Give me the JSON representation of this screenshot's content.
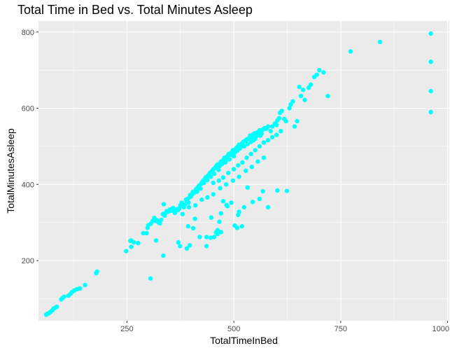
{
  "chart_data": {
    "type": "scatter",
    "title": "Total Time in Bed vs. Total Minutes Asleep",
    "xlabel": "TotalTimeInBed",
    "ylabel": "TotalMinutesAsleep",
    "xlim": [
      43,
      1004
    ],
    "ylim": [
      42,
      829
    ],
    "x_ticks": [
      250,
      500,
      750,
      1000
    ],
    "x_tick_labels": [
      "250",
      "500",
      "750",
      "1000"
    ],
    "y_ticks": [
      200,
      400,
      600,
      800
    ],
    "y_tick_labels": [
      "200",
      "400",
      "600",
      "800"
    ],
    "grid": true,
    "point_color": "#00ffff",
    "panel_background": "#ebebeb",
    "points": [
      [
        61,
        58
      ],
      [
        63,
        60
      ],
      [
        65,
        61
      ],
      [
        67,
        62
      ],
      [
        70,
        64
      ],
      [
        72,
        66
      ],
      [
        76,
        70
      ],
      [
        78,
        74
      ],
      [
        82,
        76
      ],
      [
        86,
        79
      ],
      [
        96,
        98
      ],
      [
        100,
        102
      ],
      [
        103,
        105
      ],
      [
        113,
        108
      ],
      [
        118,
        113
      ],
      [
        122,
        118
      ],
      [
        127,
        122
      ],
      [
        133,
        125
      ],
      [
        140,
        127
      ],
      [
        152,
        136
      ],
      [
        178,
        167
      ],
      [
        180,
        171
      ],
      [
        248,
        225
      ],
      [
        258,
        252
      ],
      [
        260,
        236
      ],
      [
        266,
        248
      ],
      [
        276,
        246
      ],
      [
        288,
        272
      ],
      [
        298,
        286
      ],
      [
        300,
        293
      ],
      [
        306,
        297
      ],
      [
        310,
        304
      ],
      [
        314,
        312
      ],
      [
        318,
        304
      ],
      [
        320,
        306
      ],
      [
        324,
        300
      ],
      [
        327,
        298
      ],
      [
        330,
        307
      ],
      [
        334,
        322
      ],
      [
        338,
        318
      ],
      [
        340,
        325
      ],
      [
        343,
        330
      ],
      [
        346,
        328
      ],
      [
        350,
        334
      ],
      [
        353,
        331
      ],
      [
        356,
        336
      ],
      [
        358,
        338
      ],
      [
        361,
        333
      ],
      [
        364,
        331
      ],
      [
        367,
        335
      ],
      [
        370,
        333
      ],
      [
        372,
        337
      ],
      [
        375,
        346
      ],
      [
        378,
        352
      ],
      [
        380,
        344
      ],
      [
        383,
        340
      ],
      [
        385,
        347
      ],
      [
        388,
        360
      ],
      [
        390,
        355
      ],
      [
        392,
        362
      ],
      [
        394,
        352
      ],
      [
        396,
        366
      ],
      [
        398,
        372
      ],
      [
        400,
        369
      ],
      [
        402,
        374
      ],
      [
        404,
        380
      ],
      [
        407,
        378
      ],
      [
        410,
        384
      ],
      [
        412,
        388
      ],
      [
        414,
        381
      ],
      [
        416,
        392
      ],
      [
        418,
        396
      ],
      [
        420,
        398
      ],
      [
        422,
        389
      ],
      [
        424,
        402
      ],
      [
        426,
        406
      ],
      [
        428,
        410
      ],
      [
        430,
        404
      ],
      [
        432,
        414
      ],
      [
        434,
        418
      ],
      [
        436,
        420
      ],
      [
        438,
        412
      ],
      [
        440,
        424
      ],
      [
        442,
        426
      ],
      [
        444,
        430
      ],
      [
        446,
        420
      ],
      [
        448,
        434
      ],
      [
        450,
        436
      ],
      [
        452,
        440
      ],
      [
        454,
        428
      ],
      [
        456,
        444
      ],
      [
        458,
        446
      ],
      [
        460,
        450
      ],
      [
        462,
        452
      ],
      [
        464,
        438
      ],
      [
        466,
        448
      ],
      [
        468,
        456
      ],
      [
        470,
        460
      ],
      [
        472,
        453
      ],
      [
        474,
        462
      ],
      [
        476,
        466
      ],
      [
        478,
        470
      ],
      [
        480,
        458
      ],
      [
        482,
        464
      ],
      [
        484,
        472
      ],
      [
        486,
        476
      ],
      [
        488,
        480
      ],
      [
        490,
        466
      ],
      [
        492,
        478
      ],
      [
        494,
        482
      ],
      [
        496,
        486
      ],
      [
        498,
        490
      ],
      [
        500,
        474
      ],
      [
        502,
        484
      ],
      [
        504,
        492
      ],
      [
        506,
        496
      ],
      [
        508,
        488
      ],
      [
        510,
        500
      ],
      [
        512,
        504
      ],
      [
        514,
        494
      ],
      [
        516,
        498
      ],
      [
        518,
        506
      ],
      [
        520,
        508
      ],
      [
        522,
        512
      ],
      [
        524,
        500
      ],
      [
        526,
        514
      ],
      [
        528,
        516
      ],
      [
        530,
        518
      ],
      [
        532,
        506
      ],
      [
        534,
        520
      ],
      [
        536,
        522
      ],
      [
        538,
        528
      ],
      [
        540,
        512
      ],
      [
        542,
        524
      ],
      [
        544,
        530
      ],
      [
        546,
        516
      ],
      [
        548,
        534
      ],
      [
        550,
        520
      ],
      [
        552,
        526
      ],
      [
        554,
        536
      ],
      [
        556,
        530
      ],
      [
        558,
        538
      ],
      [
        560,
        542
      ],
      [
        562,
        528
      ],
      [
        565,
        534
      ],
      [
        568,
        544
      ],
      [
        572,
        548
      ],
      [
        576,
        546
      ],
      [
        580,
        552
      ],
      [
        586,
        540
      ],
      [
        590,
        552
      ],
      [
        596,
        560
      ],
      [
        600,
        556
      ],
      [
        602,
        568
      ],
      [
        606,
        574
      ],
      [
        608,
        588
      ],
      [
        612,
        593
      ],
      [
        618,
        572
      ],
      [
        622,
        566
      ],
      [
        630,
        600
      ],
      [
        633,
        610
      ],
      [
        638,
        618
      ],
      [
        642,
        552
      ],
      [
        648,
        566
      ],
      [
        452,
        404
      ],
      [
        465,
        410
      ],
      [
        475,
        418
      ],
      [
        487,
        430
      ],
      [
        500,
        440
      ],
      [
        510,
        450
      ],
      [
        520,
        458
      ],
      [
        530,
        470
      ],
      [
        540,
        480
      ],
      [
        550,
        490
      ],
      [
        560,
        500
      ],
      [
        570,
        510
      ],
      [
        580,
        516
      ],
      [
        590,
        524
      ],
      [
        600,
        530
      ],
      [
        610,
        540
      ],
      [
        336,
        348
      ],
      [
        362,
        325
      ],
      [
        380,
        322
      ],
      [
        395,
        340
      ],
      [
        410,
        345
      ],
      [
        425,
        360
      ],
      [
        438,
        366
      ],
      [
        452,
        374
      ],
      [
        468,
        390
      ],
      [
        482,
        400
      ],
      [
        498,
        410
      ],
      [
        512,
        420
      ],
      [
        528,
        436
      ],
      [
        542,
        446
      ],
      [
        556,
        460
      ],
      [
        570,
        470
      ],
      [
        318,
        253
      ],
      [
        370,
        248
      ],
      [
        374,
        238
      ],
      [
        390,
        232
      ],
      [
        397,
        240
      ],
      [
        405,
        285
      ],
      [
        420,
        262
      ],
      [
        436,
        238
      ],
      [
        446,
        260
      ],
      [
        454,
        262
      ],
      [
        458,
        274
      ],
      [
        462,
        280
      ],
      [
        466,
        302
      ],
      [
        470,
        324
      ],
      [
        475,
        356
      ],
      [
        483,
        346
      ],
      [
        494,
        352
      ],
      [
        502,
        292
      ],
      [
        508,
        286
      ],
      [
        510,
        320
      ],
      [
        512,
        328
      ],
      [
        519,
        290
      ],
      [
        524,
        340
      ],
      [
        532,
        392
      ],
      [
        544,
        354
      ],
      [
        560,
        362
      ],
      [
        568,
        382
      ],
      [
        580,
        340
      ],
      [
        602,
        384
      ],
      [
        624,
        383
      ],
      [
        335,
        213
      ],
      [
        393,
        290
      ],
      [
        409,
        310
      ],
      [
        436,
        262
      ],
      [
        447,
        313
      ],
      [
        462,
        270
      ],
      [
        470,
        275
      ],
      [
        485,
        343
      ],
      [
        305,
        153
      ],
      [
        260,
        253
      ],
      [
        296,
        272
      ],
      [
        653,
        656
      ],
      [
        657,
        632
      ],
      [
        662,
        648
      ],
      [
        666,
        622
      ],
      [
        675,
        654
      ],
      [
        680,
        662
      ],
      [
        688,
        682
      ],
      [
        694,
        688
      ],
      [
        700,
        700
      ],
      [
        710,
        694
      ],
      [
        720,
        632
      ],
      [
        773,
        749
      ],
      [
        842,
        774
      ],
      [
        961,
        796
      ],
      [
        961,
        722
      ],
      [
        961,
        645
      ],
      [
        961,
        590
      ]
    ]
  }
}
